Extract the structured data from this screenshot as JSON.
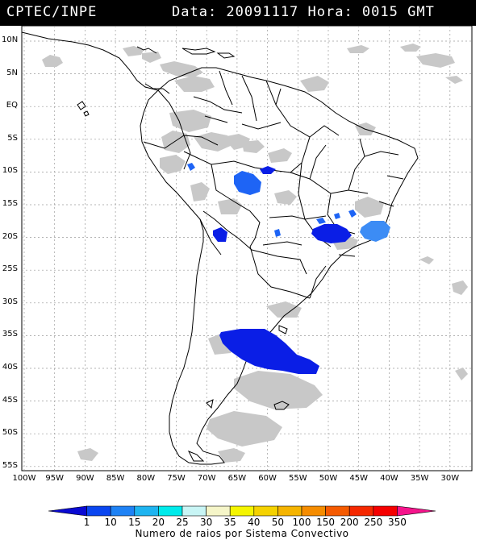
{
  "header": {
    "source": "CPTEC/INPE",
    "datetime": "Data: 20091117 Hora: 0015 GMT"
  },
  "map": {
    "lat_labels": [
      "10N",
      "5N",
      "EQ",
      "5S",
      "10S",
      "15S",
      "20S",
      "25S",
      "30S",
      "35S",
      "40S",
      "45S",
      "50S",
      "55S"
    ],
    "lon_labels": [
      "100W",
      "95W",
      "90W",
      "85W",
      "80W",
      "75W",
      "70W",
      "65W",
      "60W",
      "55W",
      "50W",
      "45W",
      "40W",
      "35W",
      "30W"
    ],
    "colors": {
      "land_outline": "#000000",
      "cloud_gray": "#c8c8c8",
      "cell_dark_blue": "#0a1ee6",
      "cell_mid_blue": "#1e64f5",
      "cell_light_blue": "#3c8cf5"
    }
  },
  "colorbar": {
    "labels": [
      "1",
      "10",
      "15",
      "20",
      "25",
      "30",
      "35",
      "40",
      "50",
      "100",
      "150",
      "200",
      "250",
      "350"
    ],
    "colors": [
      "#0a0ad2",
      "#0a46f0",
      "#1e82f5",
      "#1eb4f0",
      "#00ebeb",
      "#c8f5f5",
      "#f5f5c8",
      "#f5f500",
      "#f5d200",
      "#f5b400",
      "#f58c00",
      "#f55a00",
      "#f52800",
      "#f50000",
      "#f5148c"
    ],
    "title": "Numero de raios por Sistema Convectivo"
  }
}
